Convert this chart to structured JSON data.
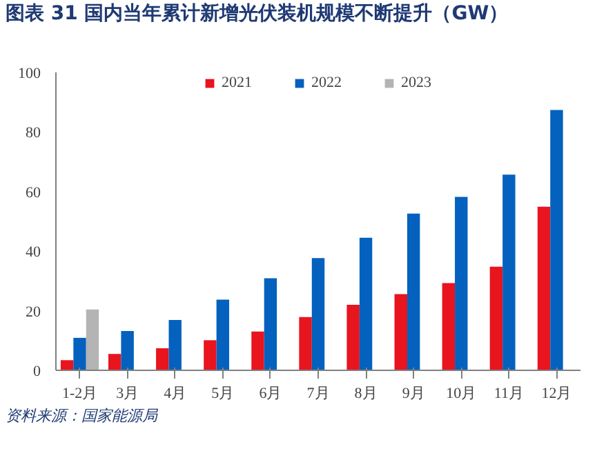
{
  "chart_data": {
    "type": "bar",
    "title": "图表 31    国内当年累计新增光伏装机规模不断提升（GW）",
    "categories": [
      "1-2月",
      "3月",
      "4月",
      "5月",
      "6月",
      "7月",
      "8月",
      "9月",
      "10月",
      "11月",
      "12月"
    ],
    "series": [
      {
        "name": "2021",
        "color": "#e8141e",
        "values": [
          3.4,
          5.5,
          7.4,
          10.1,
          13.0,
          17.9,
          22.0,
          25.6,
          29.3,
          34.8,
          54.9
        ]
      },
      {
        "name": "2022",
        "color": "#0461be",
        "values": [
          10.9,
          13.2,
          16.9,
          23.7,
          30.9,
          37.7,
          44.5,
          52.6,
          58.2,
          65.7,
          87.4
        ]
      },
      {
        "name": "2023",
        "color": "#b4b4b4",
        "values": [
          20.4,
          null,
          null,
          null,
          null,
          null,
          null,
          null,
          null,
          null,
          null
        ]
      }
    ],
    "ylim": [
      0,
      100
    ],
    "yticks": [
      0,
      20,
      40,
      60,
      80,
      100
    ],
    "grid": false,
    "legend": "top",
    "annotations": [
      "资料来源：国家能源局"
    ]
  }
}
